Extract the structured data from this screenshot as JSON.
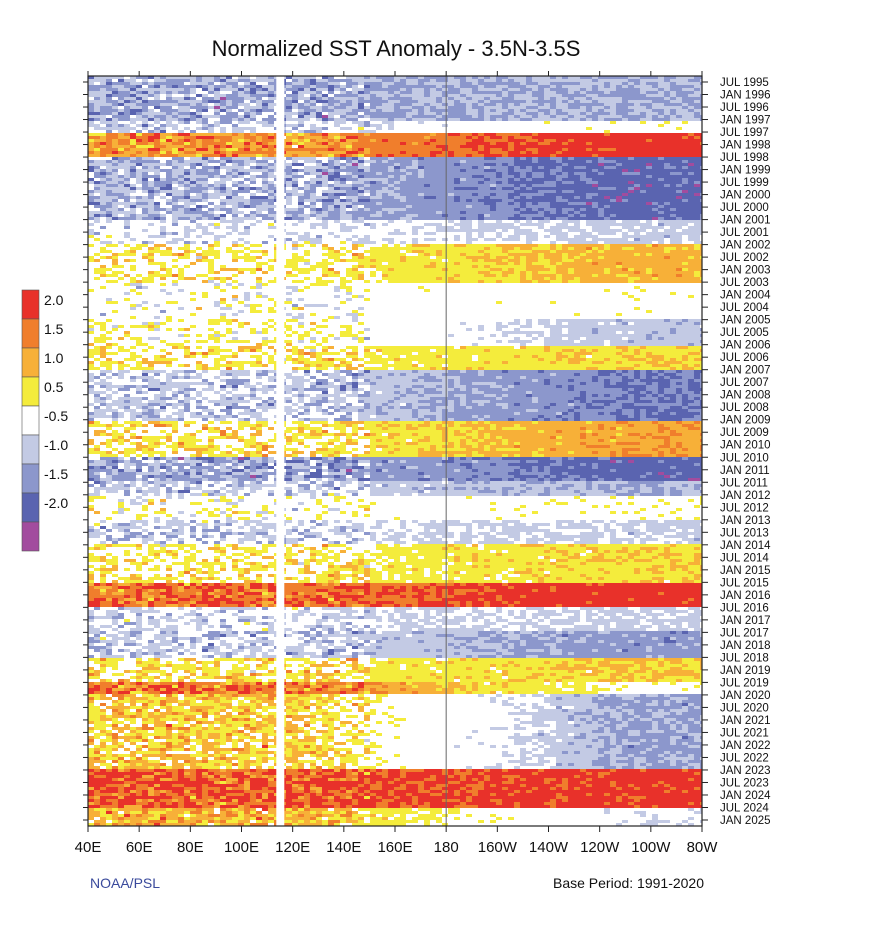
{
  "chart_data": {
    "type": "heatmap",
    "title": "Normalized SST Anomaly - 3.5N-3.5S",
    "footer_left": "NOAA/PSL",
    "footer_right": "Base Period: 1991-2020",
    "x_ticks": [
      "40E",
      "60E",
      "80E",
      "100E",
      "120E",
      "140E",
      "160E",
      "180",
      "160W",
      "140W",
      "120W",
      "100W",
      "80W"
    ],
    "x_range_lon_east": [
      40,
      280
    ],
    "y_ticks": [
      "JUL 1995",
      "JAN 1996",
      "JUL 1996",
      "JAN 1997",
      "JUL 1997",
      "JAN 1998",
      "JUL 1998",
      "JAN 1999",
      "JUL 1999",
      "JAN 2000",
      "JUL 2000",
      "JAN 2001",
      "JUL 2001",
      "JAN 2002",
      "JUL 2002",
      "JAN 2003",
      "JUL 2003",
      "JAN 2004",
      "JUL 2004",
      "JAN 2005",
      "JUL 2005",
      "JAN 2006",
      "JUL 2006",
      "JAN 2007",
      "JUL 2007",
      "JAN 2008",
      "JUL 2008",
      "JAN 2009",
      "JUL 2009",
      "JAN 2010",
      "JUL 2010",
      "JAN 2011",
      "JUL 2011",
      "JAN 2012",
      "JUL 2012",
      "JAN 2013",
      "JUL 2013",
      "JAN 2014",
      "JUL 2014",
      "JAN 2015",
      "JUL 2015",
      "JAN 2016",
      "JUL 2016",
      "JAN 2017",
      "JUL 2017",
      "JAN 2018",
      "JUL 2018",
      "JAN 2019",
      "JUL 2019",
      "JAN 2020",
      "JUL 2020",
      "JAN 2021",
      "JUL 2021",
      "JAN 2022",
      "JUL 2022",
      "JAN 2023",
      "JUL 2023",
      "JAN 2024",
      "JUL 2024",
      "JAN 2025"
    ],
    "time_axis_direction": "top-to-bottom",
    "colorbar": {
      "labels": [
        "2.0",
        "1.5",
        "1.0",
        "0.5",
        "-0.5",
        "-1.0",
        "-1.5",
        "-2.0"
      ],
      "colors": [
        "#e8312a",
        "#f07e2c",
        "#f7b038",
        "#f4ec3c",
        "#ffffff",
        "#c3cae4",
        "#8c97cc",
        "#5a64b0",
        "#a24c9e"
      ]
    },
    "bands": [
      {
        "from": "JUL 1995",
        "to": "JAN 1997",
        "west": -1.0,
        "east": -1.0
      },
      {
        "from": "JAN 1997",
        "to": "JUL 1997",
        "west": -0.6,
        "east": 0.3
      },
      {
        "from": "JUL 1997",
        "to": "JUL 1998",
        "west": 1.5,
        "east": 2.3
      },
      {
        "from": "JUL 1998",
        "to": "JAN 2001",
        "west": -0.9,
        "east": -1.7
      },
      {
        "from": "JAN 2001",
        "to": "JAN 2002",
        "west": -0.3,
        "east": -0.6
      },
      {
        "from": "JAN 2002",
        "to": "JUL 2003",
        "west": 0.5,
        "east": 1.2
      },
      {
        "from": "JUL 2003",
        "to": "JAN 2005",
        "west": 0.0,
        "east": 0.2
      },
      {
        "from": "JAN 2005",
        "to": "JAN 2006",
        "west": 0.3,
        "east": -0.8
      },
      {
        "from": "JAN 2006",
        "to": "JAN 2007",
        "west": 0.6,
        "east": 0.9
      },
      {
        "from": "JAN 2007",
        "to": "JAN 2009",
        "west": -0.6,
        "east": -1.5
      },
      {
        "from": "JAN 2009",
        "to": "JUL 2010",
        "west": 0.6,
        "east": 1.4
      },
      {
        "from": "JUL 2010",
        "to": "JUL 2011",
        "west": -1.0,
        "east": -1.7
      },
      {
        "from": "JUL 2011",
        "to": "JAN 2012",
        "west": -0.6,
        "east": -1.0
      },
      {
        "from": "JAN 2012",
        "to": "JAN 2013",
        "west": 0.1,
        "east": 0.3
      },
      {
        "from": "JAN 2013",
        "to": "JAN 2014",
        "west": -0.5,
        "east": -0.6
      },
      {
        "from": "JAN 2014",
        "to": "JUL 2015",
        "west": 0.5,
        "east": 0.9
      },
      {
        "from": "JUL 2015",
        "to": "JUL 2016",
        "west": 1.8,
        "east": 2.3
      },
      {
        "from": "JUL 2016",
        "to": "JUL 2017",
        "west": -0.4,
        "east": -0.6
      },
      {
        "from": "JUL 2017",
        "to": "JUL 2018",
        "west": -0.6,
        "east": -1.2
      },
      {
        "from": "JUL 2018",
        "to": "JUL 2019",
        "west": 0.6,
        "east": 1.0
      },
      {
        "from": "JUL 2019",
        "to": "JAN 2020",
        "west": 1.8,
        "east": 0.3
      },
      {
        "from": "JAN 2020",
        "to": "JAN 2023",
        "west": 0.9,
        "east": -1.1
      },
      {
        "from": "JAN 2023",
        "to": "JUL 2024",
        "west": 2.0,
        "east": 2.2
      },
      {
        "from": "JUL 2024",
        "to": "JAN 2025",
        "west": 1.2,
        "east": -0.4
      }
    ]
  }
}
